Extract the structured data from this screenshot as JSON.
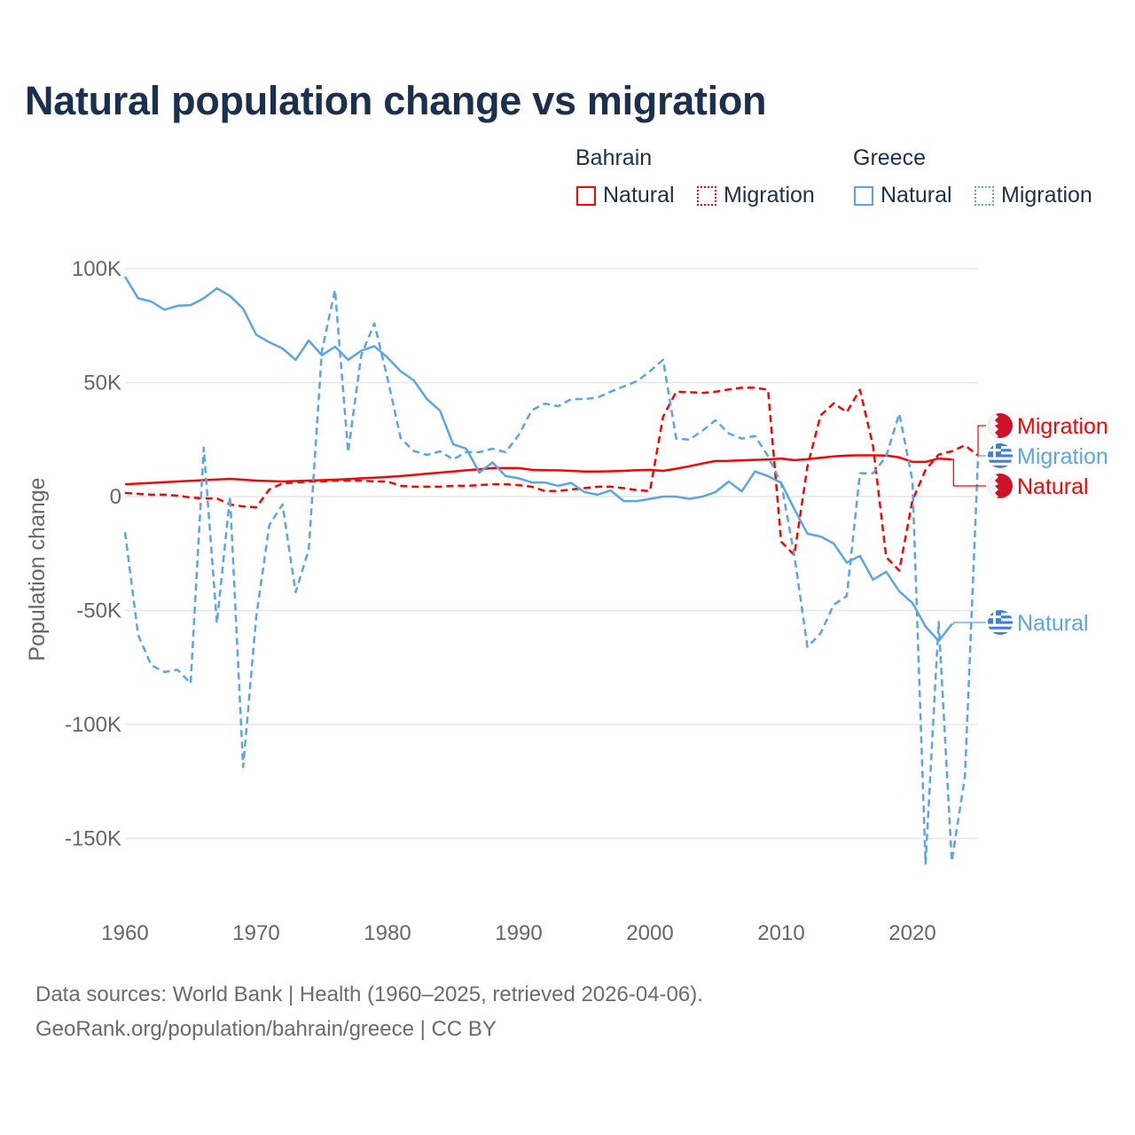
{
  "chart_data": {
    "type": "line",
    "title": "Natural population change vs migration",
    "ylabel": "Population change",
    "xlabel": "",
    "xlim": [
      1960,
      2025
    ],
    "ylim": [
      -165000,
      105000
    ],
    "x_ticks": [
      1960,
      1970,
      1980,
      1990,
      2000,
      2010,
      2020
    ],
    "x_tick_labels": [
      "1960",
      "1970",
      "1980",
      "1990",
      "2000",
      "2010",
      "2020"
    ],
    "y_ticks": [
      100000,
      50000,
      0,
      -50000,
      -100000,
      -150000
    ],
    "y_tick_labels": [
      "100K",
      "50K",
      "0",
      "-50K",
      "-100K",
      "-150K"
    ],
    "grid": true,
    "legend_placement": "top-right",
    "legend": {
      "groups": [
        {
          "name": "Bahrain",
          "items": [
            "Natural",
            "Migration"
          ]
        },
        {
          "name": "Greece",
          "items": [
            "Natural",
            "Migration"
          ]
        }
      ]
    },
    "series": [
      {
        "name": "Bahrain Natural",
        "country": "Bahrain",
        "kind": "Natural",
        "color": "#ff0000",
        "dash": false,
        "start": 1960,
        "values": [
          5400,
          5700,
          6000,
          6300,
          6600,
          6900,
          7200,
          7500,
          7800,
          7400,
          7000,
          6800,
          6600,
          6800,
          7000,
          7200,
          7400,
          7700,
          8000,
          8300,
          8600,
          9000,
          9500,
          10000,
          10500,
          11000,
          11500,
          12000,
          12500,
          12500,
          12500,
          11700,
          11600,
          11500,
          11300,
          11000,
          11000,
          11100,
          11300,
          11600,
          11700,
          11300,
          12200,
          13300,
          14500,
          15600,
          15700,
          15900,
          16100,
          16300,
          16700,
          16000,
          16400,
          17000,
          17600,
          18000,
          18100,
          18100,
          18000,
          17200,
          15200,
          15200,
          16700,
          16300
        ],
        "end_label": "Natural"
      },
      {
        "name": "Bahrain Migration",
        "country": "Bahrain",
        "kind": "Migration",
        "color": "#ff0000",
        "dash": true,
        "start": 1960,
        "values": [
          1600,
          1200,
          800,
          800,
          400,
          -400,
          -800,
          -800,
          -3500,
          -4300,
          -4700,
          3100,
          5800,
          6200,
          6600,
          6600,
          7000,
          7000,
          7000,
          6600,
          6600,
          4700,
          4300,
          4300,
          4300,
          4700,
          4700,
          5000,
          5400,
          5400,
          5000,
          4300,
          2400,
          2400,
          3100,
          3700,
          4300,
          4300,
          3700,
          2800,
          2400,
          35000,
          46000,
          45800,
          45500,
          46000,
          47000,
          47800,
          47800,
          46800,
          -19800,
          -25700,
          13200,
          35600,
          40900,
          37100,
          46900,
          22200,
          -26500,
          -32500,
          -1800,
          11700,
          18400,
          19900,
          22500,
          18000
        ],
        "end_label": "Migration"
      },
      {
        "name": "Greece Natural",
        "country": "Greece",
        "kind": "Natural",
        "color": "#5aa5e8",
        "dash": false,
        "start": 1960,
        "values": [
          96500,
          87000,
          85600,
          82000,
          83700,
          84000,
          87000,
          91400,
          88000,
          82500,
          71000,
          67700,
          65000,
          60000,
          68500,
          62000,
          65800,
          60000,
          64000,
          66000,
          61000,
          55000,
          51000,
          42800,
          37700,
          23000,
          21000,
          10500,
          15000,
          9000,
          8000,
          6200,
          6200,
          4700,
          6000,
          2000,
          800,
          2700,
          -2000,
          -2000,
          -1000,
          0,
          0,
          -1000,
          0,
          2000,
          6600,
          2300,
          11000,
          9000,
          6000,
          -5500,
          -16300,
          -17500,
          -20600,
          -29000,
          -26000,
          -36500,
          -33000,
          -41600,
          -46700,
          -57000,
          -63400,
          -56000
        ],
        "end_label": "Natural"
      },
      {
        "name": "Greece Migration",
        "country": "Greece",
        "kind": "Migration",
        "color": "#5aa5e8",
        "dash": true,
        "start": 1960,
        "values": [
          -15600,
          -60700,
          -74000,
          -77000,
          -76000,
          -82000,
          21400,
          -55600,
          0,
          -118700,
          -52500,
          -12500,
          -3500,
          -42000,
          -23300,
          63800,
          90700,
          19500,
          62000,
          76000,
          52000,
          25700,
          20000,
          18300,
          19800,
          16300,
          19500,
          19500,
          21000,
          19500,
          27000,
          37900,
          40800,
          39600,
          42800,
          42800,
          43400,
          46000,
          48300,
          50600,
          55000,
          60000,
          25400,
          25000,
          28900,
          33500,
          27700,
          25400,
          26600,
          17700,
          5800,
          -25700,
          -66000,
          -60000,
          -47500,
          -43600,
          10200,
          10200,
          17700,
          36400,
          7200,
          -161000,
          -55000,
          -160000,
          -123000,
          17000
        ],
        "end_label": "Migration"
      }
    ]
  },
  "source": {
    "line1": "Data sources: World Bank | Health (1960–2025, retrieved 2026-04-06).",
    "line2": "GeoRank.org/population/bahrain/greece | CC BY"
  }
}
